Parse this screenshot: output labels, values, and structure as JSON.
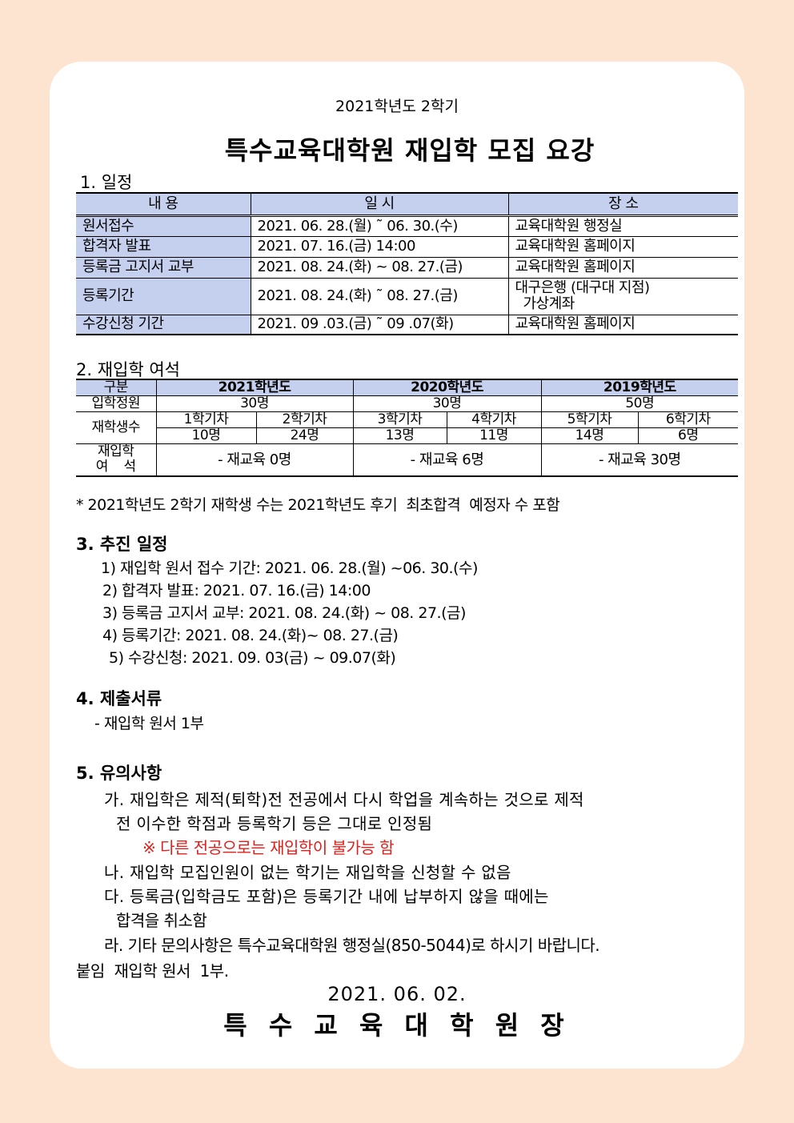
{
  "header": {
    "subtitle": "2021학년도 2학기",
    "title": "특수교육대학원 재입학 모집 요강"
  },
  "section1": {
    "heading": "1. 일정",
    "columns": [
      "내          용",
      "일          시",
      "장          소"
    ],
    "rows": [
      {
        "item": "원서접수",
        "date": "2021. 06. 28.(월) ˜ 06. 30.(수)",
        "place": "교육대학원 행정실"
      },
      {
        "item": "합격자 발표",
        "date": "2021. 07. 16.(금) 14:00",
        "place": "교육대학원 홈페이지"
      },
      {
        "item": "등록금 고지서 교부",
        "date": "2021. 08. 24.(화) ~ 08. 27.(금)",
        "place": "교육대학원 홈페이지"
      },
      {
        "item": "등록기간",
        "date": "2021. 08. 24.(화) ˜ 08. 27.(금)",
        "place": "대구은행 (대구대 지점)",
        "place2": "가상계좌"
      },
      {
        "item": "수강신청 기간",
        "date": "2021. 09 .03.(금) ˜ 09 .07(화)",
        "place": "교육대학원 홈페이지"
      }
    ]
  },
  "section2": {
    "heading": "2. 재입학 여석",
    "col0": "구분",
    "years": [
      "2021학년도",
      "2020학년도",
      "2019학년도"
    ],
    "quota_label": "입학정원",
    "quotas": [
      "30명",
      "30명",
      "50명"
    ],
    "students_label": "재학생수",
    "terms": [
      "1학기차",
      "2학기차",
      "3학기차",
      "4학기차",
      "5학기차",
      "6학기차"
    ],
    "counts": [
      "10명",
      "24명",
      "13명",
      "11명",
      "14명",
      "6명"
    ],
    "vacancy_label1": "재입학",
    "vacancy_label2": "여    석",
    "vacancies": [
      "- 재교육 0명",
      "- 재교육 6명",
      "- 재교육 30명"
    ],
    "note": "* 2021학년도 2학기 재학생 수는 2021학년도 후기  최초합격  예정자 수 포함"
  },
  "section3": {
    "heading": "3. 추진 일정",
    "items": [
      "1) 재입학 원서 접수 기간: 2021. 06. 28.(월) ~06. 30.(수)",
      "2) 합격자 발표: 2021. 07. 16.(금) 14:00",
      "3) 등록금 고지서 교부: 2021. 08. 24.(화) ~ 08. 27.(금)",
      "4) 등록기간: 2021. 08. 24.(화)~ 08. 27.(금)",
      "5) 수강신청: 2021. 09. 03(금) ~ 09.07(화)"
    ]
  },
  "section4": {
    "heading": "4. 제출서류",
    "items": [
      "- 재입학 원서 1부"
    ]
  },
  "section5": {
    "heading": "5. 유의사항",
    "lines": [
      "가. 재입학은 제적(퇴학)전 전공에서 다시 학업을 계속하는 것으로 제적",
      "전 이수한 학점과 등록학기 등은 그대로 인정됨",
      "※ 다른 전공으로는 재입학이 불가능 함",
      "나. 재입학 모집인원이 없는 학기는 재입학을 신청할 수 없음",
      "다. 등록금(입학금도 포함)은 등록기간 내에 납부하지 않을 때에는",
      "합격을 취소함",
      "라. 기타 문의사항은 특수교육대학원 행정실(850-5044)로 하시기 바랍니다."
    ]
  },
  "attachment": "붙임  재입학 원서  1부.",
  "footer": {
    "date": "2021. 06. 02.",
    "signature": "특 수 교 육 대 학 원 장"
  },
  "colors": {
    "background": "#fce4d0",
    "table_header": "#c5d0ee",
    "warning": "#e0201b"
  }
}
